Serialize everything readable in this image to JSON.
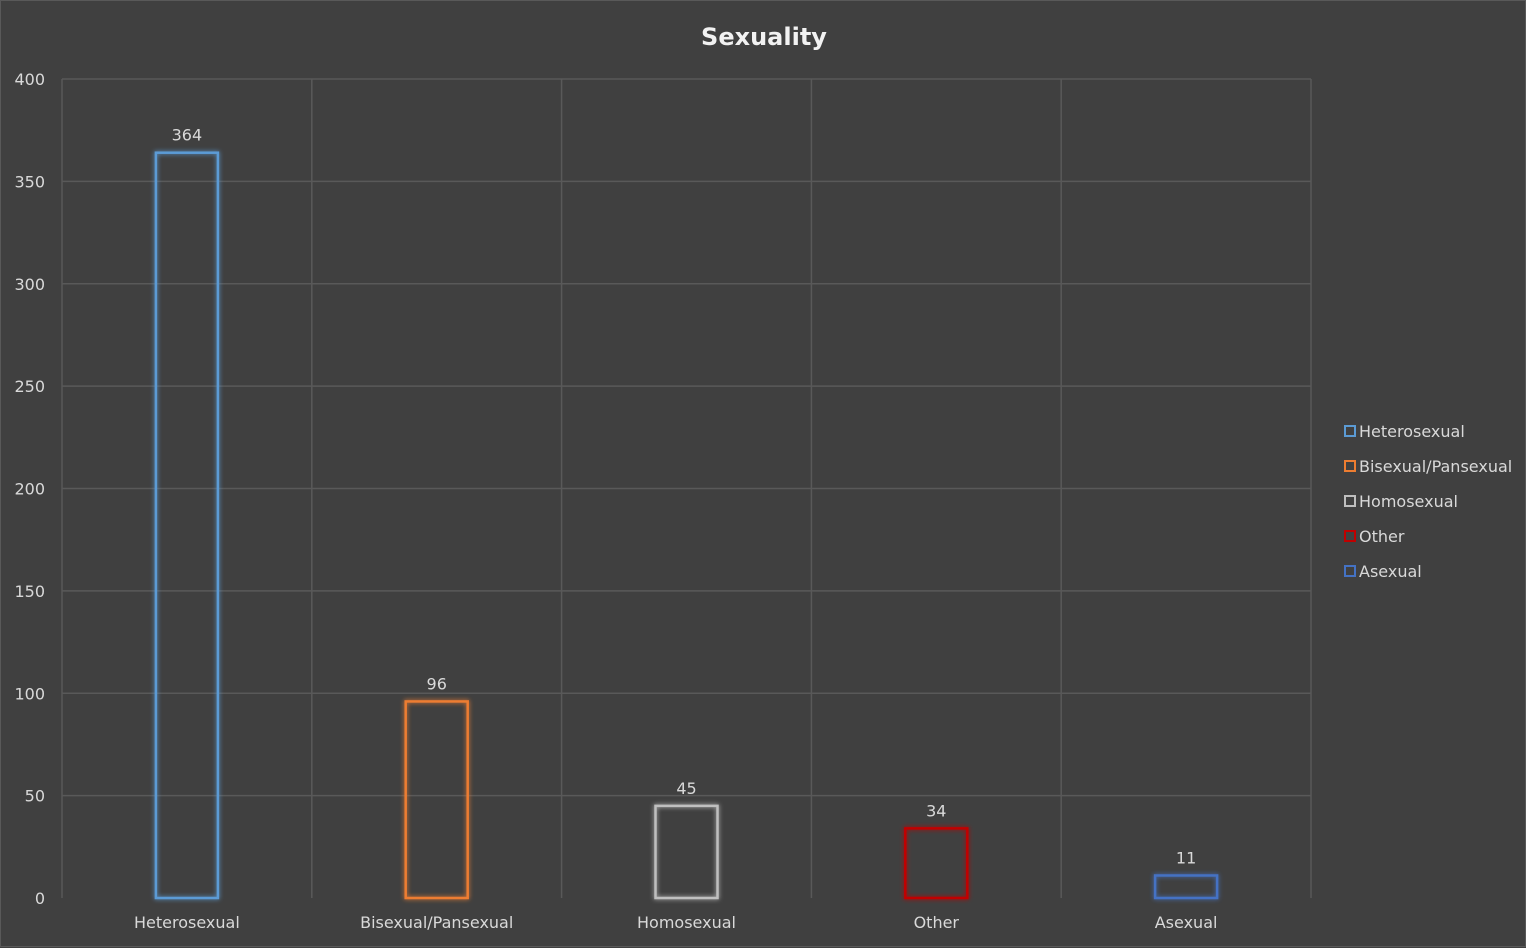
{
  "chart_data": {
    "type": "bar",
    "title": "Sexuality",
    "categories": [
      "Heterosexual",
      "Bisexual/Pansexual",
      "Homosexual",
      "Other",
      "Asexual"
    ],
    "values": [
      364,
      96,
      45,
      34,
      11
    ],
    "data_labels": [
      "364",
      "96",
      "45",
      "34",
      "11"
    ],
    "colors": [
      "#5b9bd5",
      "#ed7d31",
      "#bfbfbf",
      "#c00000",
      "#4472c4"
    ],
    "ylim": [
      0,
      400
    ],
    "yticks": [
      0,
      50,
      100,
      150,
      200,
      250,
      300,
      350,
      400
    ],
    "ytick_labels": [
      "0",
      "50",
      "100",
      "150",
      "200",
      "250",
      "300",
      "350",
      "400"
    ],
    "grid": true,
    "legend_position": "right",
    "legend": [
      "Heterosexual",
      "Bisexual/Pansexual",
      "Homosexual",
      "Other",
      "Asexual"
    ],
    "bar_style": "outlined-with-glow",
    "background_color": "#404040",
    "grid_color": "#595959"
  }
}
